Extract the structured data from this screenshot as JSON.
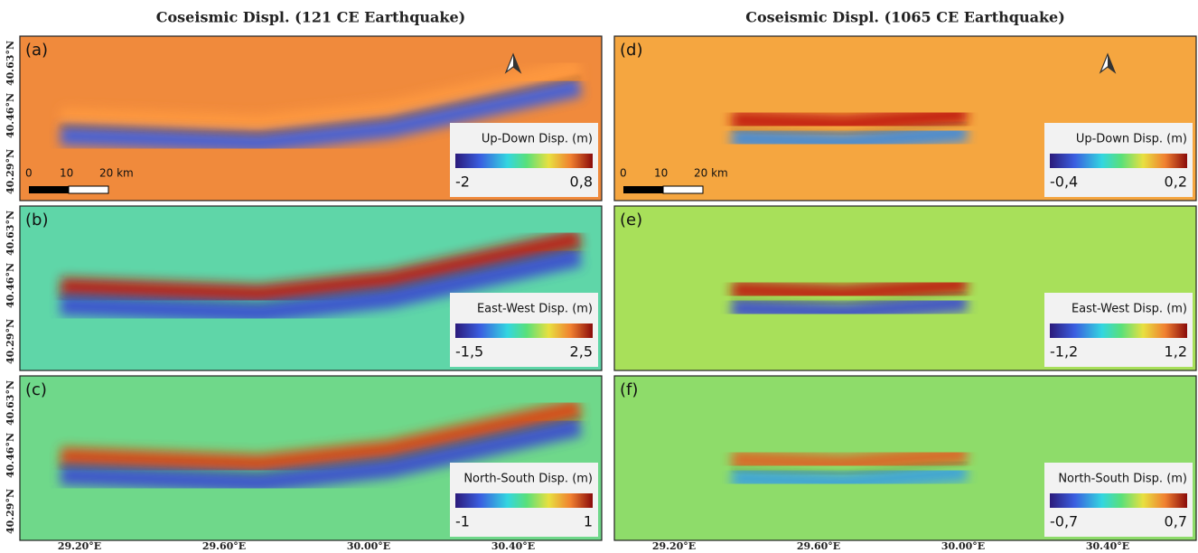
{
  "columns": [
    {
      "title": "Coseismic Displ. (121 CE Earthquake)"
    },
    {
      "title": "Coseismic Displ. (1065 CE Earthquake)"
    }
  ],
  "panels": [
    {
      "label": "(a)",
      "legend_title": "Up-Down Disp. (m)",
      "min": "-2",
      "max": "0,8"
    },
    {
      "label": "(b)",
      "legend_title": "East-West Disp. (m)",
      "min": "-1,5",
      "max": "2,5"
    },
    {
      "label": "(c)",
      "legend_title": "North-South Disp. (m)",
      "min": "-1",
      "max": "1"
    },
    {
      "label": "(d)",
      "legend_title": "Up-Down Disp. (m)",
      "min": "-0,4",
      "max": "0,2"
    },
    {
      "label": "(e)",
      "legend_title": "East-West Disp. (m)",
      "min": "-1,2",
      "max": "1,2"
    },
    {
      "label": "(f)",
      "legend_title": "North-South Disp. (m)",
      "min": "-0,7",
      "max": "0,7"
    }
  ],
  "y_labels": [
    "40.63°N",
    "40.46°N",
    "40.29°N"
  ],
  "x_labels": [
    "29.20°E",
    "29.60°E",
    "30.00°E",
    "30.40°E"
  ],
  "scale_bar": [
    "0",
    "10",
    "20 km"
  ]
}
